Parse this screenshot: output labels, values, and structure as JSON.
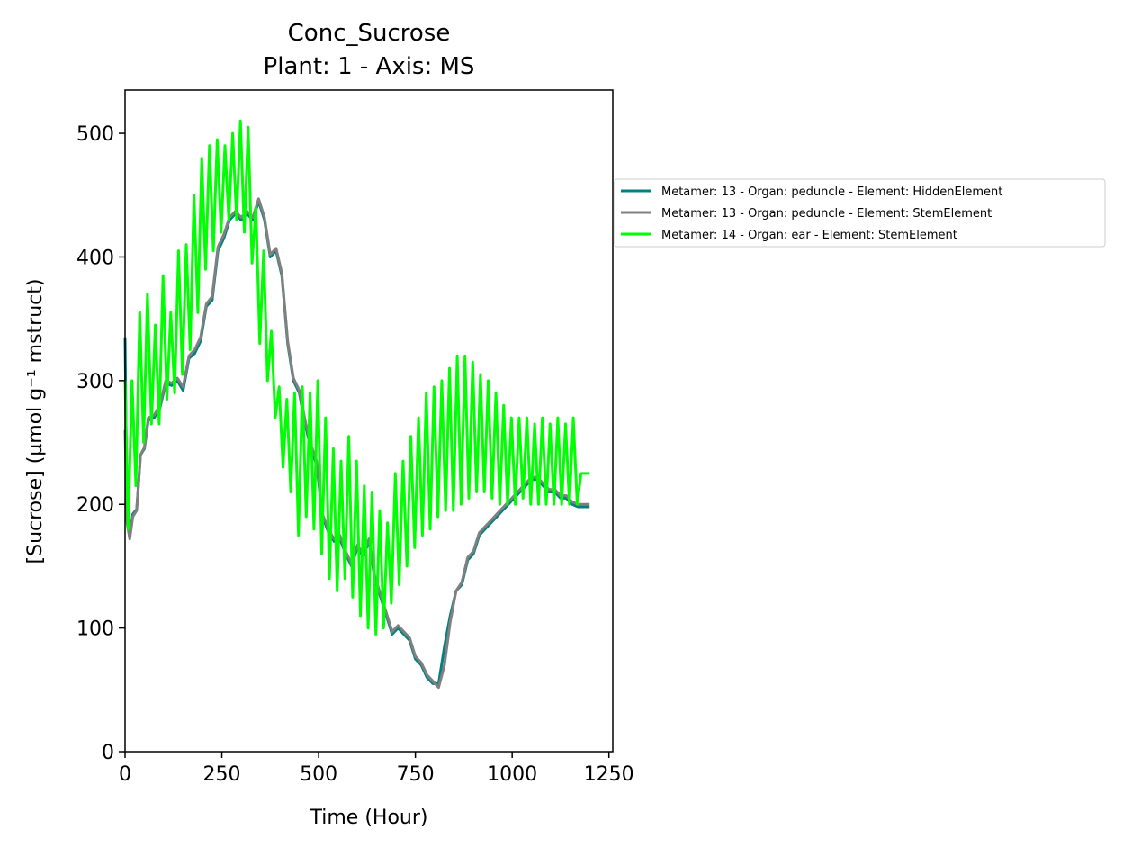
{
  "chart_data": {
    "type": "line",
    "title": "Conc_Sucrose",
    "subtitle": "Plant: 1 - Axis: MS",
    "xlabel": "Time (Hour)",
    "ylabel": "[Sucrose] (µmol g⁻¹ mstruct)",
    "xlim": [
      0,
      1260
    ],
    "ylim": [
      0,
      535
    ],
    "xticks": [
      0,
      250,
      500,
      750,
      1000,
      1250
    ],
    "yticks": [
      0,
      100,
      200,
      300,
      400,
      500
    ],
    "grid": false,
    "legend_position": "outside-right",
    "series": [
      {
        "name": "Metamer: 13 - Organ: peduncle - Element: HiddenElement",
        "color": "#008080",
        "x": [
          0,
          5,
          12,
          20,
          30,
          40,
          50,
          60,
          75,
          90,
          105,
          120,
          135,
          150,
          165,
          180,
          195,
          210,
          225,
          240,
          255,
          270,
          285,
          300,
          315,
          330,
          345,
          360,
          375,
          390,
          405,
          420,
          435,
          450,
          465,
          480,
          495,
          510,
          525,
          540,
          555,
          570,
          585,
          600,
          615,
          630,
          645,
          660,
          675,
          690,
          705,
          720,
          735,
          750,
          765,
          780,
          795,
          810,
          825,
          840,
          855,
          870,
          885,
          900,
          915,
          930,
          945,
          960,
          975,
          990,
          1005,
          1020,
          1035,
          1050,
          1065,
          1080,
          1095,
          1110,
          1125,
          1140,
          1155,
          1170,
          1185,
          1200
        ],
        "y": [
          335,
          190,
          175,
          192,
          196,
          240,
          245,
          268,
          270,
          278,
          298,
          296,
          300,
          292,
          318,
          322,
          332,
          360,
          365,
          405,
          415,
          430,
          435,
          430,
          435,
          430,
          445,
          430,
          400,
          405,
          385,
          330,
          300,
          290,
          265,
          245,
          232,
          190,
          178,
          170,
          172,
          160,
          150,
          165,
          158,
          170,
          140,
          125,
          110,
          95,
          100,
          95,
          90,
          75,
          70,
          60,
          55,
          55,
          85,
          110,
          130,
          135,
          155,
          160,
          175,
          180,
          185,
          190,
          195,
          200,
          205,
          210,
          215,
          220,
          220,
          215,
          210,
          210,
          205,
          205,
          200,
          198,
          198,
          198
        ]
      },
      {
        "name": "Metamer: 13 - Organ: peduncle - Element: StemElement",
        "color": "#808080",
        "x": [
          0,
          5,
          12,
          20,
          30,
          40,
          50,
          60,
          75,
          90,
          105,
          120,
          135,
          150,
          165,
          180,
          195,
          210,
          225,
          240,
          255,
          270,
          285,
          300,
          315,
          330,
          345,
          360,
          375,
          390,
          405,
          420,
          435,
          450,
          465,
          480,
          495,
          510,
          525,
          540,
          555,
          570,
          585,
          600,
          615,
          630,
          645,
          660,
          675,
          690,
          705,
          720,
          735,
          750,
          765,
          780,
          795,
          810,
          825,
          840,
          855,
          870,
          885,
          900,
          915,
          930,
          945,
          960,
          975,
          990,
          1005,
          1020,
          1035,
          1050,
          1065,
          1080,
          1095,
          1110,
          1125,
          1140,
          1155,
          1170,
          1185,
          1200
        ],
        "y": [
          260,
          185,
          172,
          190,
          195,
          240,
          246,
          270,
          272,
          280,
          300,
          298,
          302,
          295,
          320,
          325,
          335,
          362,
          368,
          408,
          418,
          432,
          437,
          432,
          437,
          432,
          447,
          432,
          402,
          407,
          387,
          332,
          302,
          292,
          268,
          248,
          235,
          192,
          180,
          172,
          175,
          162,
          152,
          167,
          160,
          172,
          142,
          127,
          112,
          97,
          102,
          97,
          92,
          77,
          72,
          62,
          57,
          52,
          70,
          105,
          130,
          137,
          157,
          162,
          177,
          182,
          187,
          192,
          197,
          202,
          207,
          212,
          217,
          222,
          222,
          217,
          212,
          212,
          207,
          207,
          202,
          200,
          200,
          200
        ]
      },
      {
        "name": "Metamer: 14 - Organ: ear - Element: StemElement",
        "color": "#00ff00",
        "x": [
          0,
          8,
          18,
          28,
          38,
          48,
          58,
          68,
          78,
          88,
          98,
          108,
          118,
          128,
          138,
          148,
          158,
          168,
          178,
          188,
          198,
          208,
          218,
          228,
          238,
          248,
          258,
          268,
          278,
          288,
          298,
          308,
          318,
          328,
          338,
          348,
          358,
          368,
          378,
          388,
          398,
          408,
          418,
          428,
          438,
          448,
          458,
          468,
          478,
          488,
          498,
          508,
          518,
          528,
          538,
          548,
          558,
          568,
          578,
          588,
          598,
          608,
          618,
          628,
          638,
          648,
          658,
          668,
          678,
          688,
          698,
          708,
          718,
          728,
          738,
          748,
          758,
          768,
          778,
          788,
          798,
          808,
          818,
          828,
          838,
          848,
          858,
          868,
          878,
          888,
          898,
          908,
          918,
          928,
          938,
          948,
          958,
          968,
          978,
          988,
          998,
          1008,
          1018,
          1028,
          1038,
          1048,
          1058,
          1068,
          1078,
          1088,
          1098,
          1108,
          1118,
          1128,
          1138,
          1148,
          1158,
          1168,
          1178,
          1190,
          1200
        ],
        "y": [
          300,
          180,
          300,
          215,
          355,
          250,
          370,
          265,
          345,
          265,
          385,
          285,
          355,
          290,
          405,
          305,
          410,
          325,
          450,
          355,
          480,
          390,
          490,
          405,
          495,
          420,
          490,
          430,
          500,
          430,
          510,
          420,
          505,
          395,
          440,
          330,
          405,
          300,
          340,
          270,
          295,
          230,
          285,
          210,
          290,
          175,
          295,
          190,
          290,
          180,
          300,
          160,
          270,
          140,
          245,
          130,
          235,
          140,
          255,
          125,
          235,
          110,
          215,
          100,
          210,
          95,
          195,
          100,
          185,
          120,
          225,
          135,
          235,
          150,
          255,
          165,
          270,
          175,
          290,
          180,
          295,
          190,
          300,
          195,
          310,
          195,
          320,
          200,
          320,
          205,
          315,
          210,
          305,
          210,
          300,
          205,
          290,
          200,
          280,
          200,
          270,
          200,
          270,
          205,
          270,
          200,
          265,
          200,
          270,
          200,
          265,
          200,
          270,
          200,
          265,
          200,
          270,
          200,
          225,
          225,
          225
        ]
      }
    ]
  }
}
